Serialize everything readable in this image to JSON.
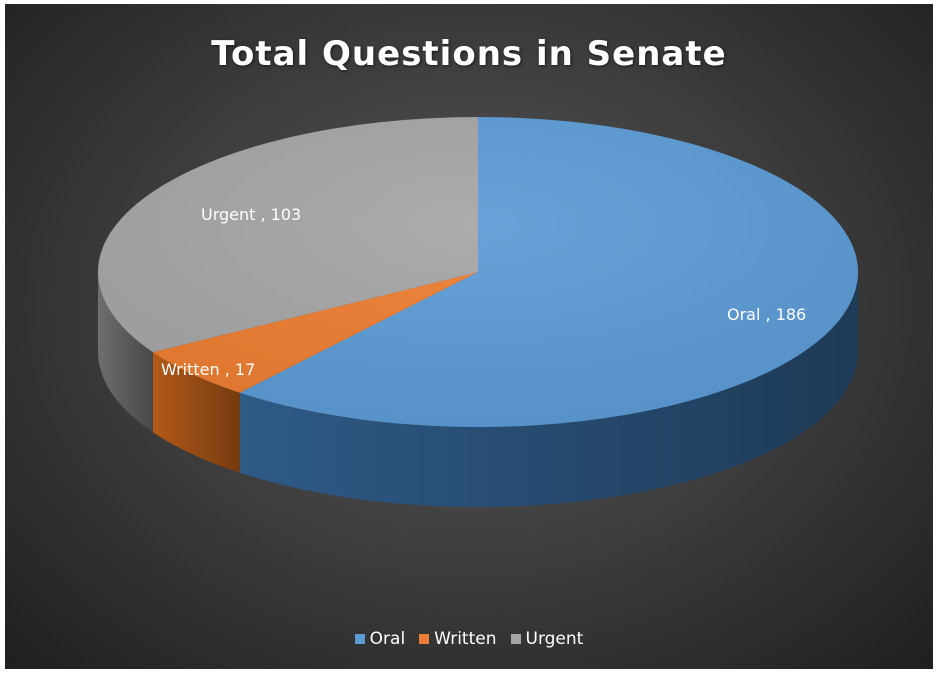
{
  "chart_data": {
    "type": "pie",
    "title": "Total Questions in Senate",
    "slices": [
      {
        "name": "Oral",
        "value": 186,
        "label": "Oral , 186",
        "color": "#5b9bd5",
        "color_side": "#2e5a86"
      },
      {
        "name": "Written",
        "value": 17,
        "label": "Written , 17",
        "color": "#ed7d31",
        "color_side": "#b35a18"
      },
      {
        "name": "Urgent",
        "value": 103,
        "label": "Urgent , 103",
        "color": "#a5a5a5",
        "color_side": "#6e6e6e"
      }
    ],
    "legend": {
      "position": "bottom",
      "entries": [
        "Oral",
        "Written",
        "Urgent"
      ]
    },
    "style": "3d-pie",
    "background": "#3a3a3a"
  }
}
